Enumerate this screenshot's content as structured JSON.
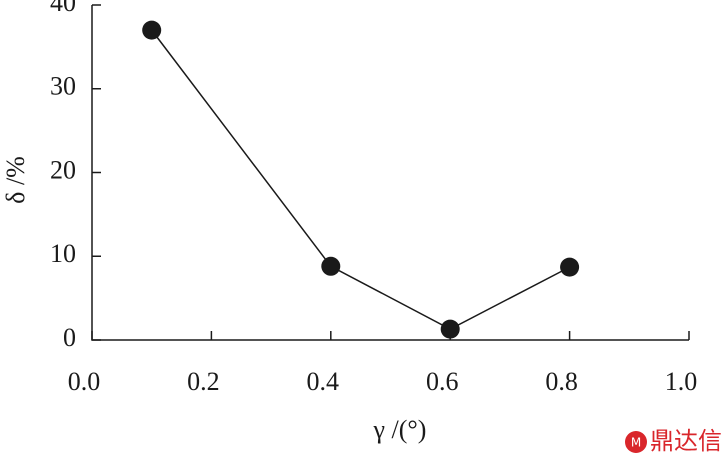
{
  "chart_data": {
    "type": "line",
    "x_label": "γ /(°)",
    "y_label": "δ /%",
    "x": [
      0.1,
      0.4,
      0.6,
      0.8
    ],
    "series": [
      {
        "color": "#1a1a1a",
        "values": [
          37.0,
          8.8,
          1.3,
          8.7
        ]
      }
    ],
    "xlim": [
      0,
      1.0
    ],
    "xticks": [
      {
        "value": 0,
        "label": "0.0"
      },
      0.2,
      0.4,
      0.6,
      0.8,
      {
        "value": 1.0,
        "label": "1.0"
      }
    ],
    "ylim": [
      0,
      40
    ],
    "yticks": [
      0,
      10,
      20,
      30,
      40
    ],
    "watermark": "鼎达信"
  }
}
